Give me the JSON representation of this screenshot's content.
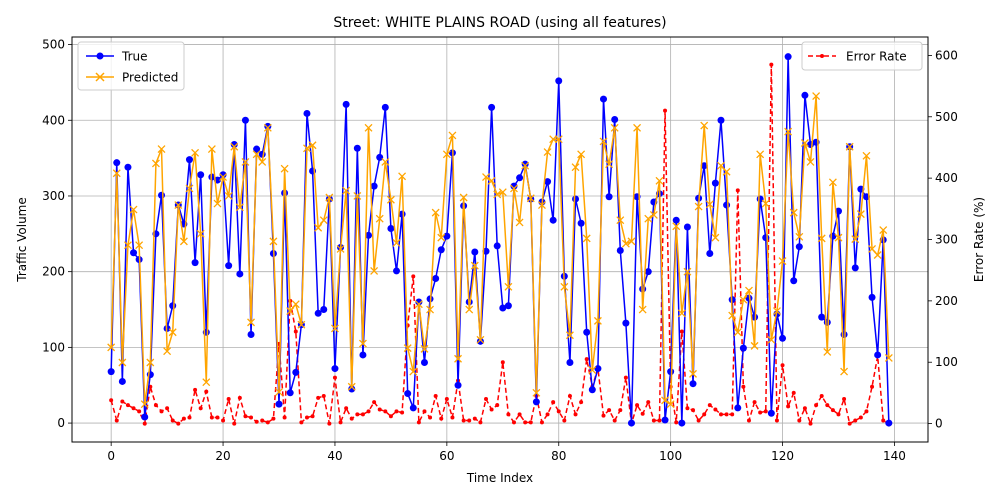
{
  "chart_data": {
    "type": "line",
    "title": "Street: WHITE PLAINS ROAD (using all features)",
    "xlabel": "Time Index",
    "ylabel": "Traffic Volume",
    "y2label": "Error Rate (%)",
    "xlim": [
      -7,
      146
    ],
    "ylim": [
      -25,
      510
    ],
    "y2lim": [
      -30,
      630
    ],
    "xticks": [
      0,
      20,
      40,
      60,
      80,
      100,
      120,
      140
    ],
    "yticks": [
      0,
      100,
      200,
      300,
      400,
      500
    ],
    "y2ticks": [
      0,
      100,
      200,
      300,
      400,
      500,
      600
    ],
    "grid": true,
    "legend_left": "upper left",
    "legend_right": "upper right",
    "colors": {
      "true": "#0000ff",
      "predicted": "#ffa500",
      "error": "#ff0000"
    },
    "series": [
      {
        "name": "True",
        "axis": "left",
        "marker": "circle",
        "values": [
          68,
          344,
          55,
          338,
          225,
          216,
          8,
          64,
          250,
          301,
          125,
          155,
          288,
          263,
          348,
          212,
          328,
          120,
          325,
          321,
          328,
          208,
          368,
          197,
          400,
          117,
          362,
          355,
          392,
          224,
          25,
          304,
          40,
          67,
          130,
          409,
          333,
          145,
          150,
          296,
          72,
          232,
          421,
          45,
          363,
          90,
          248,
          313,
          351,
          417,
          257,
          201,
          276,
          39,
          20,
          160,
          80,
          164,
          191,
          229,
          247,
          357,
          50,
          287,
          160,
          226,
          108,
          227,
          417,
          234,
          152,
          155,
          313,
          324,
          342,
          296,
          28,
          292,
          319,
          268,
          452,
          194,
          80,
          296,
          264,
          120,
          44,
          72,
          428,
          299,
          401,
          228,
          132,
          0,
          299,
          177,
          200,
          292,
          303,
          4,
          68,
          268,
          0,
          259,
          52,
          297,
          340,
          224,
          317,
          400,
          288,
          163,
          20,
          99,
          165,
          140,
          296,
          245,
          13,
          144,
          112,
          484,
          188,
          233,
          433,
          368,
          371,
          140,
          133,
          247,
          280,
          117,
          365,
          205,
          309,
          299,
          166,
          90,
          242,
          0
        ]
      },
      {
        "name": "Predicted",
        "axis": "left",
        "marker": "x",
        "values": [
          100,
          330,
          80,
          235,
          282,
          235,
          25,
          80,
          343,
          362,
          95,
          120,
          288,
          240,
          310,
          357,
          250,
          54,
          362,
          290,
          325,
          300,
          365,
          285,
          345,
          133,
          355,
          345,
          390,
          240,
          41,
          336,
          148,
          157,
          130,
          363,
          367,
          258,
          268,
          298,
          125,
          230,
          307,
          48,
          300,
          105,
          390,
          201,
          270,
          345,
          295,
          238,
          326,
          99,
          68,
          157,
          98,
          150,
          278,
          245,
          355,
          380,
          85,
          298,
          150,
          208,
          110,
          325,
          320,
          302,
          305,
          180,
          310,
          265,
          340,
          297,
          40,
          288,
          358,
          375,
          375,
          180,
          116,
          338,
          355,
          244,
          70,
          135,
          372,
          342,
          390,
          268,
          237,
          240,
          390,
          150,
          270,
          275,
          320,
          30,
          25,
          260,
          145,
          200,
          65,
          286,
          393,
          289,
          245,
          340,
          332,
          142,
          120,
          163,
          175,
          102,
          355,
          290,
          110,
          148,
          214,
          385,
          278,
          246,
          370,
          345,
          432,
          244,
          94,
          318,
          245,
          68,
          365,
          243,
          276,
          353,
          230,
          222,
          255,
          86
        ]
      },
      {
        "name": "Error Rate",
        "axis": "right",
        "marker": "dot",
        "values": [
          38,
          5,
          36,
          30,
          25,
          20,
          0,
          60,
          30,
          20,
          25,
          5,
          0,
          8,
          10,
          55,
          25,
          52,
          10,
          10,
          5,
          40,
          0,
          42,
          12,
          10,
          3,
          5,
          2,
          8,
          130,
          10,
          200,
          150,
          2,
          10,
          12,
          42,
          45,
          0,
          75,
          2,
          25,
          8,
          15,
          15,
          20,
          35,
          23,
          20,
          12,
          20,
          18,
          160,
          240,
          2,
          20,
          10,
          45,
          8,
          40,
          10,
          70,
          5,
          5,
          8,
          2,
          40,
          23,
          30,
          100,
          15,
          2,
          15,
          2,
          2,
          45,
          2,
          15,
          35,
          20,
          5,
          45,
          15,
          35,
          105,
          60,
          90,
          13,
          22,
          5,
          22,
          75,
          0,
          30,
          16,
          35,
          5,
          5,
          510,
          60,
          2,
          150,
          25,
          22,
          5,
          15,
          30,
          23,
          15,
          15,
          15,
          380,
          60,
          5,
          35,
          18,
          20,
          585,
          5,
          95,
          28,
          50,
          5,
          25,
          0,
          30,
          45,
          30,
          22,
          15,
          40,
          0,
          5,
          10,
          20,
          60,
          110,
          5,
          0
        ]
      }
    ]
  }
}
